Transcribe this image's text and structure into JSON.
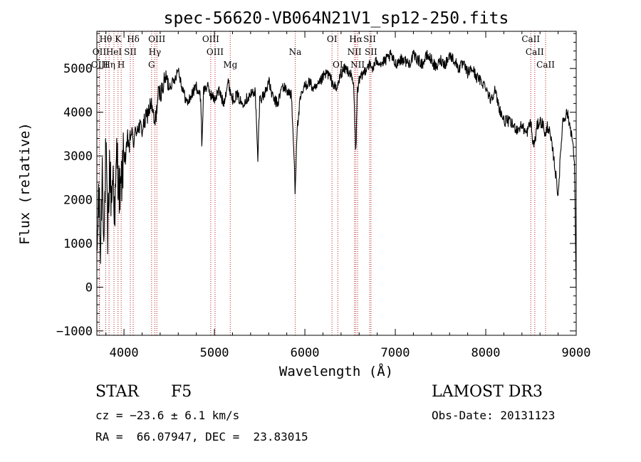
{
  "chart_data": {
    "type": "line",
    "title": "spec-56620-VB064N21V1_sp12-250.fits",
    "xlabel": "Wavelength (Å)",
    "ylabel": "Flux (relative)",
    "xlim": [
      3700,
      9000
    ],
    "ylim": [
      -1100,
      5850
    ],
    "x_ticks": [
      4000,
      5000,
      6000,
      7000,
      8000,
      9000
    ],
    "y_ticks": [
      -1000,
      0,
      1000,
      2000,
      3000,
      4000,
      5000
    ],
    "x_tick_labels": [
      "4000",
      "5000",
      "6000",
      "7000",
      "8000",
      "9000"
    ],
    "y_tick_labels": [
      "−1000",
      "0",
      "1000",
      "2000",
      "3000",
      "4000",
      "5000"
    ],
    "series": [
      {
        "name": "flux",
        "x": [
          3700,
          3720,
          3740,
          3760,
          3780,
          3800,
          3820,
          3840,
          3860,
          3880,
          3900,
          3920,
          3940,
          3960,
          3980,
          4000,
          4020,
          4040,
          4060,
          4080,
          4100,
          4150,
          4200,
          4250,
          4300,
          4340,
          4380,
          4420,
          4460,
          4500,
          4550,
          4600,
          4650,
          4700,
          4750,
          4800,
          4850,
          4861,
          4880,
          4920,
          4960,
          5000,
          5050,
          5100,
          5150,
          5200,
          5250,
          5300,
          5350,
          5400,
          5450,
          5480,
          5500,
          5550,
          5600,
          5650,
          5700,
          5750,
          5800,
          5850,
          5880,
          5893,
          5910,
          5950,
          6000,
          6050,
          6100,
          6150,
          6200,
          6250,
          6300,
          6350,
          6400,
          6450,
          6500,
          6540,
          6563,
          6580,
          6600,
          6650,
          6700,
          6750,
          6800,
          6850,
          6900,
          6950,
          7000,
          7050,
          7100,
          7150,
          7200,
          7250,
          7300,
          7350,
          7400,
          7450,
          7500,
          7550,
          7600,
          7650,
          7700,
          7750,
          7800,
          7850,
          7900,
          7950,
          8000,
          8050,
          8100,
          8150,
          8200,
          8250,
          8300,
          8350,
          8400,
          8450,
          8498,
          8520,
          8542,
          8570,
          8600,
          8640,
          8662,
          8680,
          8700,
          8750,
          8800,
          8850,
          8900,
          8950,
          8980,
          9000
        ],
        "values": [
          500,
          2200,
          800,
          2800,
          1200,
          3200,
          1000,
          2800,
          2000,
          2600,
          1500,
          3100,
          2400,
          2000,
          2600,
          3100,
          2900,
          3400,
          3200,
          3600,
          3300,
          3700,
          3600,
          3900,
          4200,
          3700,
          4400,
          4500,
          4800,
          4600,
          4700,
          5000,
          4500,
          4200,
          4400,
          4600,
          4300,
          3200,
          4500,
          4600,
          4400,
          4300,
          4500,
          4200,
          4700,
          4300,
          4400,
          4200,
          4300,
          4400,
          4500,
          2900,
          4300,
          4400,
          4700,
          4300,
          4200,
          4600,
          4500,
          4400,
          3000,
          2200,
          3500,
          4300,
          4600,
          4700,
          4500,
          4600,
          4800,
          4900,
          4700,
          4500,
          4900,
          5000,
          4900,
          4600,
          3000,
          4500,
          4700,
          4900,
          5100,
          5000,
          5200,
          5100,
          5200,
          5300,
          5100,
          5200,
          5200,
          5100,
          5300,
          5200,
          5100,
          5300,
          5200,
          5000,
          5200,
          5100,
          5300,
          5200,
          5000,
          5100,
          4900,
          5000,
          4800,
          4700,
          4600,
          4300,
          4500,
          4100,
          3800,
          3800,
          3700,
          3600,
          3700,
          3500,
          3800,
          3300,
          3300,
          3700,
          3800,
          3700,
          3400,
          3700,
          3600,
          3000,
          2100,
          3800,
          4000,
          3500,
          2900,
          0
        ]
      }
    ],
    "spectral_lines": [
      {
        "label": "Hθ",
        "wavelength": 3798,
        "row": 1
      },
      {
        "label": "OII",
        "wavelength": 3727,
        "row": 2
      },
      {
        "label": "OIII",
        "wavelength": 3730,
        "row": 3
      },
      {
        "label": "Hη",
        "wavelength": 3835,
        "row": 3
      },
      {
        "label": "K",
        "wavelength": 3934,
        "row": 1
      },
      {
        "label": "HeI",
        "wavelength": 3889,
        "row": 2
      },
      {
        "label": "H",
        "wavelength": 3969,
        "row": 3
      },
      {
        "label": "SII",
        "wavelength": 4070,
        "row": 2
      },
      {
        "label": "Hδ",
        "wavelength": 4102,
        "row": 1
      },
      {
        "label": "OIII",
        "wavelength": 4363,
        "row": 1
      },
      {
        "label": "Hγ",
        "wavelength": 4341,
        "row": 2
      },
      {
        "label": "G",
        "wavelength": 4305,
        "row": 3
      },
      {
        "label": "OIII",
        "wavelength": 4959,
        "row": 1
      },
      {
        "label": "OIII",
        "wavelength": 5007,
        "row": 2
      },
      {
        "label": "Mg",
        "wavelength": 5175,
        "row": 3
      },
      {
        "label": "Na",
        "wavelength": 5893,
        "row": 2
      },
      {
        "label": "OI",
        "wavelength": 6300,
        "row": 1
      },
      {
        "label": "OI",
        "wavelength": 6364,
        "row": 3
      },
      {
        "label": "Hα",
        "wavelength": 6563,
        "row": 1
      },
      {
        "label": "NII",
        "wavelength": 6548,
        "row": 2
      },
      {
        "label": "NII",
        "wavelength": 6583,
        "row": 3
      },
      {
        "label": "SII",
        "wavelength": 6716,
        "row": 1
      },
      {
        "label": "SII",
        "wavelength": 6731,
        "row": 2
      },
      {
        "label": "CaII",
        "wavelength": 8498,
        "row": 1
      },
      {
        "label": "CaII",
        "wavelength": 8542,
        "row": 2
      },
      {
        "label": "CaII",
        "wavelength": 8662,
        "row": 3
      }
    ]
  },
  "info": {
    "object_type": "STAR",
    "spectral_class": "F5",
    "redshift": "cz = −23.6 ± 6.1 km/s",
    "coordinates": "RA =  66.07947, DEC =  23.83015",
    "survey": "LAMOST DR3",
    "obs_date": "Obs-Date: 20131123"
  },
  "colors": {
    "line": "#000000",
    "marker": "#b22222",
    "axes": "#000000",
    "background": "#ffffff"
  }
}
